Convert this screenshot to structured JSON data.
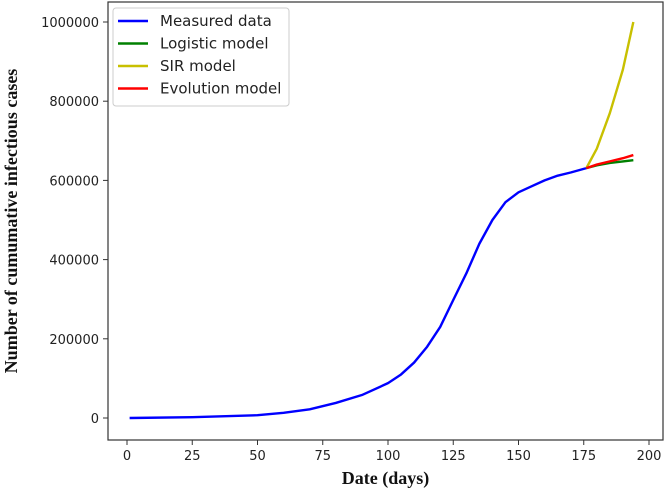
{
  "chart_data": {
    "type": "line",
    "title": "",
    "xlabel": "Date (days)",
    "ylabel": "Number of cumumative infectious cases",
    "xlim": [
      -9,
      203
    ],
    "ylim": [
      -50000,
      1050000
    ],
    "xticks": [
      0,
      25,
      50,
      75,
      100,
      125,
      150,
      175,
      200
    ],
    "yticks": [
      0,
      200000,
      400000,
      600000,
      800000,
      1000000
    ],
    "grid": false,
    "legend_position": "upper left",
    "series": [
      {
        "name": "Measured data",
        "color": "#0000ff",
        "x": [
          1,
          25,
          50,
          60,
          70,
          80,
          90,
          100,
          105,
          110,
          115,
          120,
          125,
          130,
          135,
          140,
          145,
          150,
          155,
          160,
          165,
          170,
          176
        ],
        "y": [
          0,
          2000,
          7000,
          13000,
          22000,
          38000,
          58000,
          88000,
          110000,
          140000,
          180000,
          230000,
          298000,
          365000,
          440000,
          500000,
          545000,
          570000,
          585000,
          600000,
          612000,
          620000,
          631000
        ]
      },
      {
        "name": "Logistic model",
        "color": "#008000",
        "x": [
          176,
          180,
          185,
          190,
          194
        ],
        "y": [
          631000,
          638000,
          644000,
          648000,
          651000
        ]
      },
      {
        "name": "SIR model",
        "color": "#c8c000",
        "x": [
          176,
          180,
          185,
          190,
          194
        ],
        "y": [
          631000,
          680000,
          770000,
          880000,
          1000000
        ]
      },
      {
        "name": "Evolution model",
        "color": "#ff0000",
        "x": [
          176,
          180,
          185,
          190,
          194
        ],
        "y": [
          631000,
          640000,
          648000,
          656000,
          664000
        ]
      }
    ]
  }
}
